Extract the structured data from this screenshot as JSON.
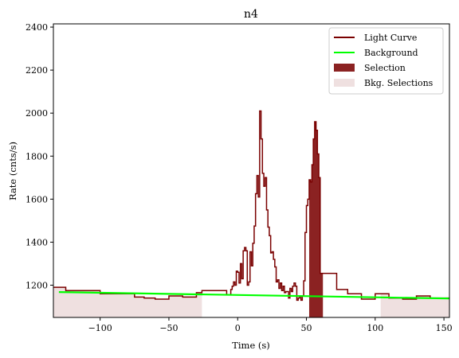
{
  "chart_data": {
    "type": "line",
    "title": "n4",
    "xlabel": "Time (s)",
    "ylabel": "Rate (cnts/s)",
    "xlim": [
      -134,
      154
    ],
    "ylim": [
      1050,
      2415
    ],
    "xticks": [
      -100,
      -50,
      0,
      50,
      100,
      150
    ],
    "xtick_labels": [
      "−100",
      "−50",
      "0",
      "50",
      "100",
      "150"
    ],
    "yticks": [
      1200,
      1400,
      1600,
      1800,
      2000,
      2200,
      2400
    ],
    "ytick_labels": [
      "1200",
      "1400",
      "1600",
      "1800",
      "2000",
      "2200",
      "2400"
    ],
    "legend_position": "top-right",
    "colors": {
      "light_curve": "#7a0000",
      "background": "#00ff00",
      "selection": "#8b2222",
      "bkg_selection": "#efe0e0"
    },
    "series": [
      {
        "name": "Light Curve",
        "style": "step",
        "x": [
          -134,
          -125,
          -100,
          -75,
          -68,
          -60,
          -50,
          -40,
          -30,
          -26,
          -8,
          -5,
          -4,
          -3,
          -2,
          -1,
          0,
          1,
          2,
          3,
          4,
          5,
          6,
          7,
          8,
          9,
          10,
          11,
          12,
          13,
          14,
          15,
          16,
          17,
          18,
          19,
          20,
          21,
          22,
          23,
          24,
          25,
          26,
          27,
          28,
          29,
          30,
          31,
          32,
          33,
          34,
          35,
          36,
          37,
          38,
          39,
          40,
          41,
          42,
          43,
          44,
          45,
          46,
          47,
          48,
          49,
          50,
          51,
          52,
          53,
          54,
          55,
          56,
          57,
          58,
          59,
          60,
          61,
          62,
          64,
          66,
          72,
          80,
          90,
          100,
          110,
          120,
          130,
          140,
          154
        ],
        "y": [
          1190,
          1175,
          1160,
          1145,
          1140,
          1135,
          1150,
          1145,
          1165,
          1175,
          1155,
          1180,
          1195,
          1215,
          1200,
          1265,
          1260,
          1210,
          1300,
          1230,
          1360,
          1375,
          1360,
          1200,
          1215,
          1355,
          1290,
          1395,
          1475,
          1625,
          1710,
          1610,
          2010,
          1880,
          1720,
          1660,
          1700,
          1550,
          1470,
          1430,
          1350,
          1355,
          1320,
          1285,
          1215,
          1225,
          1185,
          1210,
          1175,
          1195,
          1165,
          1170,
          1170,
          1140,
          1185,
          1170,
          1195,
          1210,
          1195,
          1130,
          1140,
          1150,
          1130,
          1150,
          1220,
          1445,
          1570,
          1600,
          1690,
          1680,
          1760,
          1880,
          1960,
          1920,
          1810,
          1700,
          1255,
          1255,
          1255,
          1255,
          1255,
          1180,
          1160,
          1135,
          1160,
          1140,
          1135,
          1150,
          1140,
          1140
        ]
      },
      {
        "name": "Background",
        "style": "line",
        "x": [
          -130,
          154
        ],
        "y": [
          1168,
          1138
        ]
      }
    ],
    "selection": {
      "name": "Selection",
      "x_range": [
        52,
        62
      ]
    },
    "bkg_selections": {
      "name": "Bkg. Selections",
      "ranges": [
        [
          -134,
          -26
        ],
        [
          104,
          154
        ]
      ]
    }
  }
}
